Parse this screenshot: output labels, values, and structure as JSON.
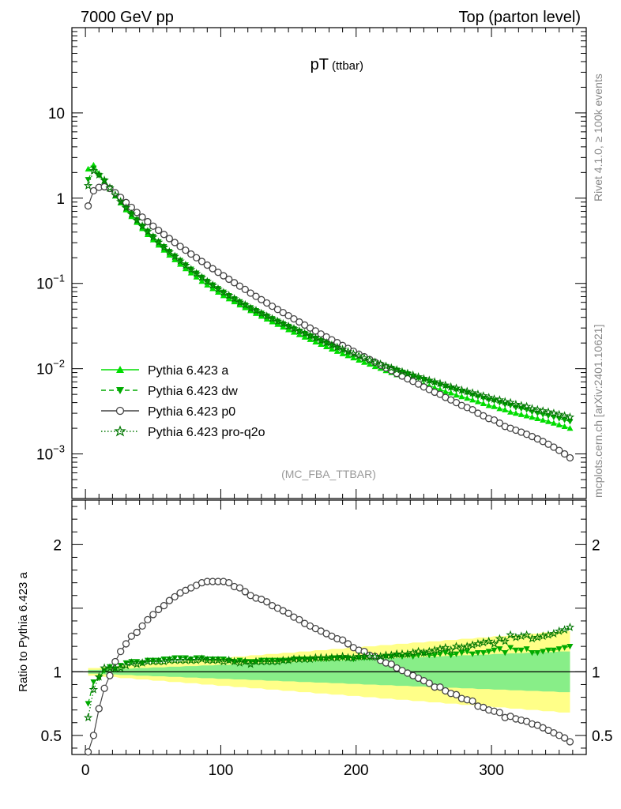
{
  "header": {
    "left": "7000 GeV pp",
    "right": "Top (parton level)"
  },
  "side_labels": {
    "rivet": "Rivet 4.1.0, ≥ 100k events",
    "mcplots": "mcplots.cern.ch [arXiv:2401.10621]"
  },
  "colors": {
    "a": "#00dd00",
    "dw": "#00aa00",
    "p0": "#444444",
    "proq2o": "#007700",
    "band_yellow": "#ffff88",
    "band_green": "#88ee88"
  },
  "chart_data": [
    {
      "type": "line",
      "scale": "log",
      "title": "pT",
      "title_sub": "(ttbar)",
      "watermark": "(MC_FBA_TTBAR)",
      "xlim": [
        -10,
        370
      ],
      "ylim": [
        0.0003,
        100
      ],
      "y_ticks": [
        {
          "value": 10,
          "base": "10",
          "exp": ""
        },
        {
          "value": 1,
          "base": "1",
          "exp": ""
        },
        {
          "value": 0.1,
          "base": "10",
          "exp": "−1"
        },
        {
          "value": 0.01,
          "base": "10",
          "exp": "−2"
        },
        {
          "value": 0.001,
          "base": "10",
          "exp": "−3"
        }
      ],
      "legend": [
        {
          "key": "a",
          "label": "Pythia 6.423 a",
          "marker": "triangle-up",
          "line": "solid"
        },
        {
          "key": "dw",
          "label": "Pythia 6.423 dw",
          "marker": "triangle-down",
          "line": "dashed"
        },
        {
          "key": "p0",
          "label": "Pythia 6.423 p0",
          "marker": "circle-open",
          "line": "solid"
        },
        {
          "key": "proq2o",
          "label": "Pythia 6.423 pro-q2o",
          "marker": "star",
          "line": "dotted"
        }
      ],
      "x": [
        2,
        6,
        10,
        14,
        18,
        22,
        26,
        30,
        34,
        38,
        42,
        46,
        50,
        54,
        58,
        62,
        66,
        70,
        74,
        78,
        82,
        86,
        90,
        94,
        98,
        102,
        106,
        110,
        114,
        118,
        122,
        126,
        130,
        134,
        138,
        142,
        146,
        150,
        154,
        158,
        162,
        166,
        170,
        174,
        178,
        182,
        186,
        190,
        194,
        198,
        202,
        206,
        210,
        214,
        218,
        222,
        226,
        230,
        234,
        238,
        242,
        246,
        250,
        254,
        258,
        262,
        266,
        270,
        274,
        278,
        282,
        286,
        290,
        294,
        298,
        302,
        306,
        310,
        314,
        318,
        322,
        326,
        330,
        334,
        338,
        342,
        346,
        350,
        354,
        358
      ],
      "series": [
        {
          "name": "Pythia 6.423 a",
          "key": "a",
          "values": [
            2.2,
            2.45,
            1.95,
            1.58,
            1.28,
            1.06,
            0.88,
            0.73,
            0.61,
            0.52,
            0.44,
            0.375,
            0.325,
            0.282,
            0.246,
            0.215,
            0.19,
            0.168,
            0.149,
            0.133,
            0.119,
            0.106,
            0.096,
            0.087,
            0.079,
            0.072,
            0.066,
            0.061,
            0.056,
            0.052,
            0.048,
            0.0445,
            0.0412,
            0.0382,
            0.0355,
            0.0331,
            0.0308,
            0.0287,
            0.0268,
            0.0251,
            0.0235,
            0.022,
            0.0206,
            0.0193,
            0.0181,
            0.017,
            0.016,
            0.015,
            0.0142,
            0.0134,
            0.0126,
            0.0119,
            0.0113,
            0.0106,
            0.0101,
            0.0095,
            0.009,
            0.0085,
            0.0081,
            0.0077,
            0.0073,
            0.0069,
            0.0066,
            0.0063,
            0.006,
            0.0057,
            0.0054,
            0.0052,
            0.0049,
            0.0047,
            0.0045,
            0.0043,
            0.0041,
            0.0039,
            0.0037,
            0.0036,
            0.0034,
            0.0033,
            0.0031,
            0.003,
            0.0029,
            0.0028,
            0.0027,
            0.0026,
            0.0025,
            0.0024,
            0.0023,
            0.0022,
            0.0021,
            0.002
          ]
        },
        {
          "name": "Pythia 6.423 dw",
          "key": "dw",
          "values": [
            1.65,
            2.25,
            1.85,
            1.6,
            1.33,
            1.08,
            0.92,
            0.78,
            0.66,
            0.56,
            0.47,
            0.41,
            0.355,
            0.308,
            0.27,
            0.237,
            0.21,
            0.186,
            0.165,
            0.147,
            0.132,
            0.118,
            0.106,
            0.096,
            0.087,
            0.079,
            0.072,
            0.066,
            0.061,
            0.056,
            0.052,
            0.048,
            0.0447,
            0.0415,
            0.0386,
            0.036,
            0.0336,
            0.0314,
            0.0294,
            0.0275,
            0.0258,
            0.0242,
            0.0227,
            0.0213,
            0.02,
            0.0188,
            0.0177,
            0.0167,
            0.0157,
            0.0148,
            0.014,
            0.0132,
            0.0125,
            0.0118,
            0.0112,
            0.0106,
            0.0101,
            0.0096,
            0.0091,
            0.0087,
            0.0082,
            0.0078,
            0.0075,
            0.0071,
            0.0068,
            0.0065,
            0.0062,
            0.0059,
            0.0056,
            0.0054,
            0.0052,
            0.0049,
            0.0047,
            0.0045,
            0.0043,
            0.0042,
            0.004,
            0.0038,
            0.0037,
            0.0035,
            0.0034,
            0.0033,
            0.0031,
            0.003,
            0.0029,
            0.0028,
            0.0027,
            0.0026,
            0.0025,
            0.0024
          ]
        },
        {
          "name": "Pythia 6.423 p0",
          "key": "p0",
          "values": [
            0.81,
            1.22,
            1.34,
            1.36,
            1.3,
            1.16,
            1.02,
            0.89,
            0.78,
            0.68,
            0.6,
            0.53,
            0.47,
            0.42,
            0.375,
            0.336,
            0.302,
            0.272,
            0.245,
            0.221,
            0.2,
            0.181,
            0.164,
            0.149,
            0.135,
            0.123,
            0.112,
            0.102,
            0.093,
            0.085,
            0.077,
            0.0705,
            0.0645,
            0.059,
            0.054,
            0.0495,
            0.0455,
            0.0418,
            0.0384,
            0.0353,
            0.0325,
            0.03,
            0.0277,
            0.0255,
            0.0236,
            0.0218,
            0.0202,
            0.0187,
            0.0173,
            0.016,
            0.0148,
            0.0138,
            0.0128,
            0.0119,
            0.011,
            0.0102,
            0.0095,
            0.0088,
            0.0082,
            0.0076,
            0.0071,
            0.0066,
            0.0061,
            0.0057,
            0.0053,
            0.005,
            0.0046,
            0.0043,
            0.004,
            0.0037,
            0.0035,
            0.0033,
            0.003,
            0.0028,
            0.0026,
            0.0025,
            0.0023,
            0.0021,
            0.002,
            0.0019,
            0.0018,
            0.0017,
            0.0016,
            0.0015,
            0.0014,
            0.0013,
            0.0012,
            0.0011,
            0.001,
            0.0009
          ]
        },
        {
          "name": "Pythia 6.423 pro-q2o",
          "key": "proq2o",
          "values": [
            1.4,
            2.1,
            1.88,
            1.62,
            1.32,
            1.09,
            0.91,
            0.77,
            0.65,
            0.55,
            0.47,
            0.405,
            0.35,
            0.304,
            0.266,
            0.234,
            0.207,
            0.183,
            0.163,
            0.145,
            0.13,
            0.117,
            0.105,
            0.095,
            0.086,
            0.078,
            0.072,
            0.066,
            0.06,
            0.056,
            0.051,
            0.048,
            0.0444,
            0.0413,
            0.0385,
            0.0359,
            0.0336,
            0.0314,
            0.0294,
            0.0276,
            0.0259,
            0.0243,
            0.0228,
            0.0214,
            0.0201,
            0.0189,
            0.0178,
            0.0168,
            0.0158,
            0.0149,
            0.0141,
            0.0133,
            0.0126,
            0.0119,
            0.0113,
            0.0107,
            0.0102,
            0.0097,
            0.0092,
            0.0088,
            0.0084,
            0.008,
            0.0076,
            0.0073,
            0.007,
            0.0067,
            0.0064,
            0.0061,
            0.0059,
            0.0056,
            0.0054,
            0.0052,
            0.005,
            0.0048,
            0.0046,
            0.0044,
            0.0043,
            0.0041,
            0.004,
            0.0038,
            0.0037,
            0.0036,
            0.0034,
            0.0033,
            0.0032,
            0.0031,
            0.003,
            0.0029,
            0.0028,
            0.0027
          ]
        }
      ]
    },
    {
      "type": "line",
      "scale": "linear",
      "ylabel": "Ratio to Pythia 6.423 a",
      "xlim": [
        -10,
        370
      ],
      "ylim": [
        0.35,
        2.35
      ],
      "x_ticks": [
        0,
        100,
        200,
        300
      ],
      "y_tick_labels": [
        {
          "value": 2,
          "label": "2"
        },
        {
          "value": 1,
          "label": "1"
        },
        {
          "value": 0.5,
          "label": "0.5"
        }
      ],
      "band_yellow_halfwidth": [
        0.03,
        0.03,
        0.03,
        0.04,
        0.04,
        0.04,
        0.05,
        0.05,
        0.05,
        0.06,
        0.06,
        0.06,
        0.07,
        0.07,
        0.07,
        0.08,
        0.08,
        0.08,
        0.09,
        0.09,
        0.09,
        0.1,
        0.1,
        0.1,
        0.11,
        0.11,
        0.11,
        0.12,
        0.12,
        0.12,
        0.13,
        0.13,
        0.13,
        0.14,
        0.14,
        0.14,
        0.15,
        0.15,
        0.15,
        0.16,
        0.16,
        0.16,
        0.17,
        0.17,
        0.17,
        0.18,
        0.18,
        0.18,
        0.19,
        0.19,
        0.19,
        0.2,
        0.2,
        0.2,
        0.21,
        0.21,
        0.21,
        0.22,
        0.22,
        0.22,
        0.23,
        0.23,
        0.23,
        0.24,
        0.24,
        0.24,
        0.25,
        0.25,
        0.25,
        0.26,
        0.26,
        0.26,
        0.27,
        0.27,
        0.27,
        0.28,
        0.28,
        0.28,
        0.29,
        0.29,
        0.29,
        0.3,
        0.3,
        0.3,
        0.31,
        0.31,
        0.31,
        0.32,
        0.32,
        0.32
      ],
      "band_green_halfwidth": [
        0.015,
        0.015,
        0.015,
        0.02,
        0.02,
        0.02,
        0.025,
        0.025,
        0.025,
        0.03,
        0.03,
        0.03,
        0.035,
        0.035,
        0.035,
        0.04,
        0.04,
        0.04,
        0.045,
        0.045,
        0.045,
        0.05,
        0.05,
        0.05,
        0.055,
        0.055,
        0.055,
        0.06,
        0.06,
        0.06,
        0.065,
        0.065,
        0.065,
        0.07,
        0.07,
        0.07,
        0.075,
        0.075,
        0.075,
        0.08,
        0.08,
        0.08,
        0.085,
        0.085,
        0.085,
        0.09,
        0.09,
        0.09,
        0.095,
        0.095,
        0.095,
        0.1,
        0.1,
        0.1,
        0.105,
        0.105,
        0.105,
        0.11,
        0.11,
        0.11,
        0.115,
        0.115,
        0.115,
        0.12,
        0.12,
        0.12,
        0.125,
        0.125,
        0.125,
        0.13,
        0.13,
        0.13,
        0.135,
        0.135,
        0.135,
        0.14,
        0.14,
        0.14,
        0.145,
        0.145,
        0.145,
        0.15,
        0.15,
        0.15,
        0.155,
        0.155,
        0.155,
        0.16,
        0.16,
        0.16
      ],
      "series": [
        {
          "key": "dw",
          "values": [
            0.75,
            0.92,
            0.95,
            1.01,
            1.04,
            1.02,
            1.05,
            1.07,
            1.08,
            1.08,
            1.07,
            1.09,
            1.09,
            1.09,
            1.1,
            1.1,
            1.11,
            1.11,
            1.11,
            1.1,
            1.11,
            1.11,
            1.1,
            1.1,
            1.1,
            1.1,
            1.09,
            1.08,
            1.09,
            1.08,
            1.08,
            1.08,
            1.09,
            1.09,
            1.09,
            1.09,
            1.09,
            1.09,
            1.1,
            1.1,
            1.1,
            1.1,
            1.1,
            1.1,
            1.1,
            1.11,
            1.11,
            1.11,
            1.11,
            1.1,
            1.11,
            1.11,
            1.11,
            1.11,
            1.11,
            1.12,
            1.12,
            1.13,
            1.12,
            1.13,
            1.12,
            1.13,
            1.14,
            1.13,
            1.13,
            1.14,
            1.15,
            1.13,
            1.14,
            1.15,
            1.16,
            1.14,
            1.15,
            1.15,
            1.16,
            1.17,
            1.18,
            1.15,
            1.19,
            1.17,
            1.17,
            1.18,
            1.15,
            1.15,
            1.16,
            1.17,
            1.17,
            1.18,
            1.19,
            1.2
          ]
        },
        {
          "key": "p0",
          "values": [
            0.37,
            0.5,
            0.71,
            0.87,
            0.97,
            1.08,
            1.16,
            1.22,
            1.28,
            1.31,
            1.36,
            1.41,
            1.45,
            1.49,
            1.52,
            1.56,
            1.59,
            1.62,
            1.64,
            1.66,
            1.68,
            1.7,
            1.71,
            1.71,
            1.71,
            1.71,
            1.7,
            1.67,
            1.66,
            1.63,
            1.6,
            1.58,
            1.57,
            1.55,
            1.52,
            1.5,
            1.48,
            1.46,
            1.43,
            1.41,
            1.38,
            1.36,
            1.34,
            1.32,
            1.3,
            1.28,
            1.26,
            1.25,
            1.22,
            1.19,
            1.17,
            1.16,
            1.13,
            1.12,
            1.09,
            1.07,
            1.06,
            1.03,
            1.01,
            0.99,
            0.97,
            0.95,
            0.93,
            0.91,
            0.88,
            0.88,
            0.85,
            0.83,
            0.82,
            0.79,
            0.78,
            0.77,
            0.73,
            0.72,
            0.7,
            0.69,
            0.68,
            0.64,
            0.65,
            0.63,
            0.62,
            0.61,
            0.59,
            0.58,
            0.56,
            0.54,
            0.52,
            0.5,
            0.48,
            0.45
          ]
        },
        {
          "key": "proq2o",
          "values": [
            0.64,
            0.86,
            0.96,
            1.03,
            1.03,
            1.03,
            1.03,
            1.05,
            1.07,
            1.06,
            1.07,
            1.08,
            1.08,
            1.08,
            1.08,
            1.09,
            1.09,
            1.09,
            1.09,
            1.09,
            1.09,
            1.1,
            1.09,
            1.09,
            1.09,
            1.08,
            1.09,
            1.08,
            1.07,
            1.08,
            1.06,
            1.08,
            1.08,
            1.08,
            1.08,
            1.08,
            1.09,
            1.09,
            1.1,
            1.1,
            1.1,
            1.1,
            1.11,
            1.11,
            1.11,
            1.11,
            1.11,
            1.12,
            1.11,
            1.11,
            1.12,
            1.12,
            1.12,
            1.12,
            1.12,
            1.13,
            1.13,
            1.14,
            1.14,
            1.14,
            1.15,
            1.16,
            1.15,
            1.16,
            1.17,
            1.18,
            1.19,
            1.17,
            1.2,
            1.19,
            1.2,
            1.21,
            1.22,
            1.23,
            1.24,
            1.22,
            1.26,
            1.24,
            1.29,
            1.27,
            1.28,
            1.29,
            1.26,
            1.27,
            1.28,
            1.29,
            1.3,
            1.32,
            1.33,
            1.35
          ]
        }
      ]
    }
  ]
}
